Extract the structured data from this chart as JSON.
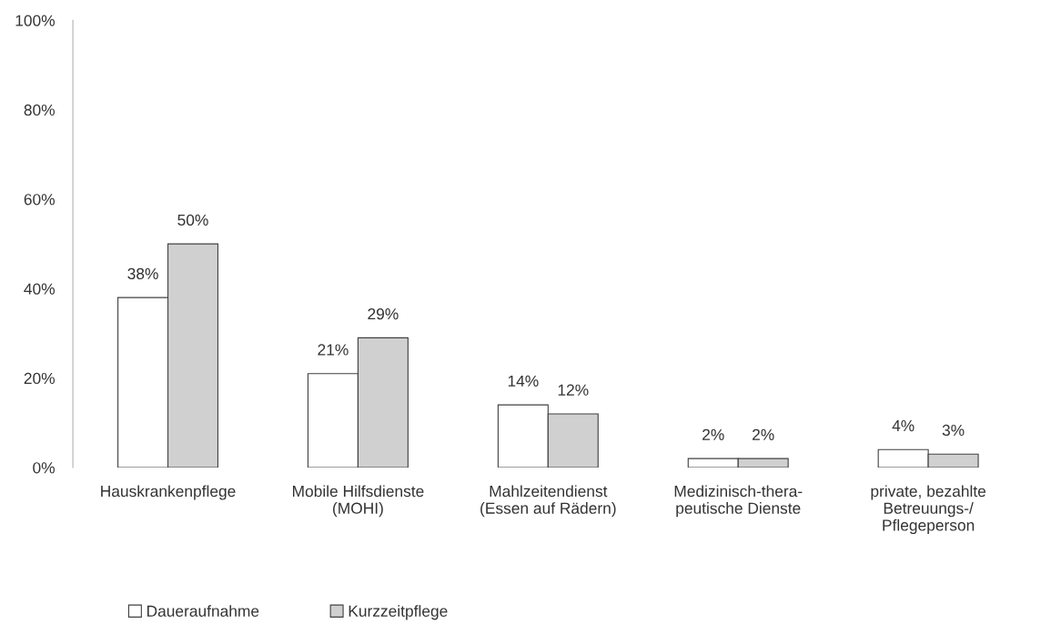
{
  "chart_data": {
    "type": "bar",
    "categories": [
      "Hauskrankenpflege",
      "Mobile Hilfsdienste\n(MOHI)",
      "Mahlzeitendienst\n(Essen auf Rädern)",
      "Medizinisch-thera-\npeutische Dienste",
      "private, bezahlte\nBetreuungs-/\nPflegeperson"
    ],
    "series": [
      {
        "name": "Daueraufnahme",
        "color": "#ffffff",
        "values": [
          38,
          21,
          14,
          2,
          4
        ],
        "value_labels": [
          "38%",
          "21%",
          "14%",
          "2%",
          "4%"
        ]
      },
      {
        "name": "Kurzzeitpflege",
        "color": "#d0d0d0",
        "values": [
          50,
          29,
          12,
          2,
          3
        ],
        "value_labels": [
          "50%",
          "29%",
          "12%",
          "2%",
          "3%"
        ]
      }
    ],
    "ylim": [
      0,
      100
    ],
    "yticks": [
      {
        "value": 0,
        "label": "0%"
      },
      {
        "value": 20,
        "label": "20%"
      },
      {
        "value": 40,
        "label": "40%"
      },
      {
        "value": 60,
        "label": "60%"
      },
      {
        "value": 80,
        "label": "80%"
      },
      {
        "value": 100,
        "label": "100%"
      }
    ],
    "grid": false,
    "legend": "bottom left"
  }
}
